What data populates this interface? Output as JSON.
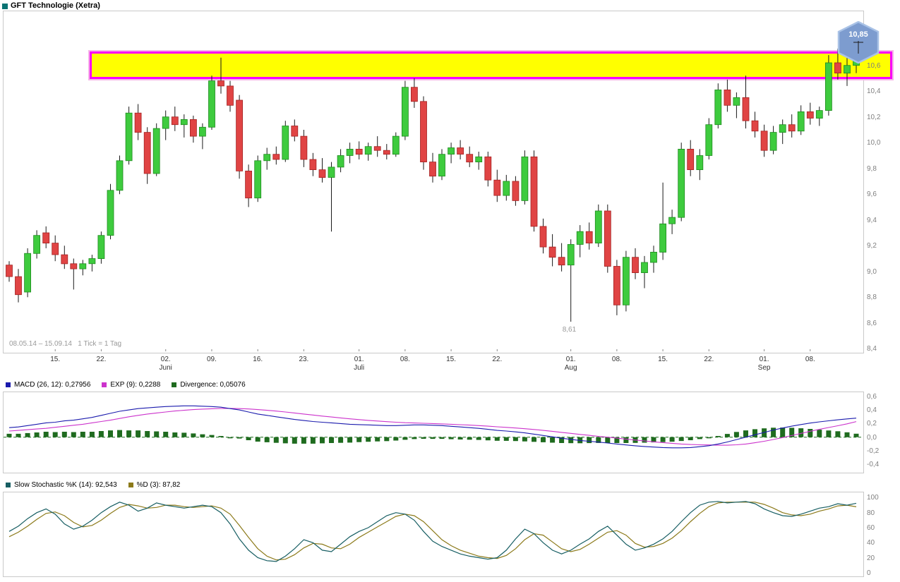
{
  "header": {
    "title": "GFT Technologie (Xetra)",
    "title_icon_color": "#0a7474"
  },
  "colors": {
    "up": "#3ecb3e",
    "up_border": "#1f8a1f",
    "down": "#e04444",
    "down_border": "#a32222",
    "wick": "#1a1a1a",
    "band_fill": "#ffff00",
    "band_border": "#fa00fa",
    "band_outer": "#f5b5e8",
    "hex_fill": "#7d9ccf",
    "hex_border": "#a9c2e6",
    "macd": "#1a1aad",
    "signal": "#cc33cc",
    "divergence": "#1f6b1f",
    "stoch_k": "#175e63",
    "stoch_d": "#8c7a1a",
    "axis_text": "#7f7f7f",
    "box_border": "#c9c9c9",
    "muted_text": "#999999"
  },
  "chart_data": [
    {
      "type": "candlestick",
      "title": "GFT Technologie (Xetra)",
      "period_label": "08.05.14 – 15.09.14   1 Tick = 1 Tag",
      "ylim": [
        8.38,
        11.02
      ],
      "y_ticks": [
        {
          "v": 10.6,
          "label": "10,6"
        },
        {
          "v": 10.4,
          "label": "10,4"
        },
        {
          "v": 10.2,
          "label": "10,2"
        },
        {
          "v": 10.0,
          "label": "10,0"
        },
        {
          "v": 9.8,
          "label": "9,8"
        },
        {
          "v": 9.6,
          "label": "9,6"
        },
        {
          "v": 9.4,
          "label": "9,4"
        },
        {
          "v": 9.2,
          "label": "9,2"
        },
        {
          "v": 9.0,
          "label": "9,0"
        },
        {
          "v": 8.8,
          "label": "8,8"
        },
        {
          "v": 8.6,
          "label": "8,6"
        },
        {
          "v": 8.4,
          "label": "8,4"
        }
      ],
      "x_ticks": [
        {
          "i": 5,
          "label": "15."
        },
        {
          "i": 10,
          "label": "22."
        },
        {
          "i": 17,
          "label": "02.",
          "month": "Juni"
        },
        {
          "i": 22,
          "label": "09."
        },
        {
          "i": 27,
          "label": "16."
        },
        {
          "i": 32,
          "label": "23."
        },
        {
          "i": 38,
          "label": "01.",
          "month": "Juli"
        },
        {
          "i": 43,
          "label": "08."
        },
        {
          "i": 48,
          "label": "15."
        },
        {
          "i": 53,
          "label": "22."
        },
        {
          "i": 61,
          "label": "01.",
          "month": "Aug"
        },
        {
          "i": 66,
          "label": "08."
        },
        {
          "i": 71,
          "label": "15."
        },
        {
          "i": 76,
          "label": "22."
        },
        {
          "i": 82,
          "label": "01.",
          "month": "Sep"
        },
        {
          "i": 87,
          "label": "08."
        }
      ],
      "low_annotation": {
        "i": 61,
        "value": 8.61,
        "label": "8,61"
      },
      "price_flag": {
        "value": 10.85,
        "label": "10,85"
      },
      "resistance_band": {
        "top": 10.69,
        "bottom": 10.51,
        "start_frac": 0.1
      },
      "candles": [
        [
          9.05,
          9.08,
          8.92,
          8.96
        ],
        [
          8.96,
          9.02,
          8.76,
          8.82
        ],
        [
          8.84,
          9.18,
          8.8,
          9.14
        ],
        [
          9.14,
          9.32,
          9.1,
          9.28
        ],
        [
          9.3,
          9.35,
          9.18,
          9.22
        ],
        [
          9.22,
          9.28,
          9.08,
          9.13
        ],
        [
          9.13,
          9.2,
          9.02,
          9.06
        ],
        [
          9.06,
          9.1,
          8.86,
          9.02
        ],
        [
          9.02,
          9.09,
          8.97,
          9.06
        ],
        [
          9.06,
          9.13,
          9.0,
          9.1
        ],
        [
          9.1,
          9.31,
          9.06,
          9.28
        ],
        [
          9.28,
          9.68,
          9.25,
          9.63
        ],
        [
          9.63,
          9.9,
          9.6,
          9.86
        ],
        [
          9.86,
          10.28,
          9.83,
          10.23
        ],
        [
          10.23,
          10.3,
          10.02,
          10.08
        ],
        [
          10.08,
          10.12,
          9.68,
          9.76
        ],
        [
          9.76,
          10.15,
          9.74,
          10.11
        ],
        [
          10.11,
          10.25,
          10.02,
          10.2
        ],
        [
          10.2,
          10.28,
          10.09,
          10.14
        ],
        [
          10.14,
          10.22,
          10.04,
          10.18
        ],
        [
          10.18,
          10.21,
          10.0,
          10.05
        ],
        [
          10.05,
          10.15,
          9.95,
          10.12
        ],
        [
          10.12,
          10.52,
          10.1,
          10.48
        ],
        [
          10.48,
          10.66,
          10.38,
          10.44
        ],
        [
          10.44,
          10.48,
          10.24,
          10.29
        ],
        [
          10.33,
          10.37,
          9.72,
          9.78
        ],
        [
          9.78,
          9.83,
          9.5,
          9.57
        ],
        [
          9.57,
          9.9,
          9.54,
          9.86
        ],
        [
          9.86,
          9.96,
          9.79,
          9.91
        ],
        [
          9.91,
          9.97,
          9.83,
          9.87
        ],
        [
          9.87,
          10.17,
          9.85,
          10.13
        ],
        [
          10.13,
          10.18,
          10.01,
          10.05
        ],
        [
          10.05,
          10.1,
          9.81,
          9.87
        ],
        [
          9.87,
          9.92,
          9.74,
          9.79
        ],
        [
          9.79,
          9.88,
          9.69,
          9.73
        ],
        [
          9.73,
          9.85,
          9.31,
          9.81
        ],
        [
          9.81,
          9.95,
          9.77,
          9.9
        ],
        [
          9.9,
          10.0,
          9.84,
          9.95
        ],
        [
          9.95,
          10.01,
          9.87,
          9.91
        ],
        [
          9.91,
          10.0,
          9.86,
          9.97
        ],
        [
          9.97,
          10.05,
          9.89,
          9.94
        ],
        [
          9.94,
          9.99,
          9.87,
          9.91
        ],
        [
          9.91,
          10.08,
          9.89,
          10.05
        ],
        [
          10.05,
          10.48,
          10.02,
          10.43
        ],
        [
          10.43,
          10.5,
          10.27,
          10.32
        ],
        [
          10.32,
          10.36,
          9.79,
          9.85
        ],
        [
          9.85,
          9.92,
          9.69,
          9.74
        ],
        [
          9.74,
          9.95,
          9.71,
          9.91
        ],
        [
          9.91,
          10.0,
          9.84,
          9.96
        ],
        [
          9.96,
          10.02,
          9.87,
          9.91
        ],
        [
          9.91,
          9.97,
          9.81,
          9.85
        ],
        [
          9.85,
          9.93,
          9.79,
          9.89
        ],
        [
          9.89,
          9.93,
          9.66,
          9.71
        ],
        [
          9.71,
          9.79,
          9.54,
          9.59
        ],
        [
          9.59,
          9.75,
          9.55,
          9.7
        ],
        [
          9.7,
          9.74,
          9.51,
          9.55
        ],
        [
          9.55,
          9.94,
          9.52,
          9.89
        ],
        [
          9.89,
          9.94,
          9.31,
          9.35
        ],
        [
          9.35,
          9.41,
          9.14,
          9.19
        ],
        [
          9.19,
          9.29,
          9.04,
          9.11
        ],
        [
          9.11,
          9.22,
          9.0,
          9.05
        ],
        [
          9.05,
          9.25,
          8.61,
          9.21
        ],
        [
          9.21,
          9.36,
          9.11,
          9.31
        ],
        [
          9.31,
          9.38,
          9.17,
          9.22
        ],
        [
          9.22,
          9.52,
          9.19,
          9.47
        ],
        [
          9.47,
          9.52,
          8.99,
          9.04
        ],
        [
          9.04,
          9.09,
          8.66,
          8.74
        ],
        [
          8.74,
          9.16,
          8.69,
          9.11
        ],
        [
          9.11,
          9.18,
          8.94,
          8.99
        ],
        [
          8.99,
          9.12,
          8.87,
          9.07
        ],
        [
          9.07,
          9.2,
          8.99,
          9.15
        ],
        [
          9.15,
          9.69,
          9.09,
          9.37
        ],
        [
          9.37,
          9.48,
          9.29,
          9.42
        ],
        [
          9.42,
          10.0,
          9.39,
          9.95
        ],
        [
          9.95,
          10.02,
          9.74,
          9.79
        ],
        [
          9.79,
          9.95,
          9.71,
          9.9
        ],
        [
          9.9,
          10.19,
          9.87,
          10.14
        ],
        [
          10.14,
          10.46,
          10.11,
          10.41
        ],
        [
          10.41,
          10.49,
          10.24,
          10.29
        ],
        [
          10.29,
          10.39,
          10.19,
          10.35
        ],
        [
          10.35,
          10.52,
          10.11,
          10.17
        ],
        [
          10.17,
          10.24,
          10.04,
          10.09
        ],
        [
          10.09,
          10.14,
          9.89,
          9.94
        ],
        [
          9.94,
          10.13,
          9.91,
          10.08
        ],
        [
          10.08,
          10.18,
          9.99,
          10.14
        ],
        [
          10.14,
          10.22,
          10.04,
          10.09
        ],
        [
          10.09,
          10.29,
          10.06,
          10.24
        ],
        [
          10.24,
          10.31,
          10.14,
          10.19
        ],
        [
          10.19,
          10.28,
          10.13,
          10.25
        ],
        [
          10.25,
          10.68,
          10.21,
          10.62
        ],
        [
          10.62,
          10.73,
          10.49,
          10.54
        ],
        [
          10.54,
          10.66,
          10.44,
          10.6
        ],
        [
          10.6,
          10.85,
          10.54,
          10.7
        ]
      ]
    },
    {
      "type": "macd",
      "title": "MACD",
      "ylim": [
        -0.5,
        0.66
      ],
      "y_ticks": [
        {
          "v": 0.6,
          "label": "0,6"
        },
        {
          "v": 0.4,
          "label": "0,4"
        },
        {
          "v": 0.2,
          "label": "0,2"
        },
        {
          "v": 0.0,
          "label": "0,0"
        },
        {
          "v": -0.2,
          "label": "-0,2"
        },
        {
          "v": -0.4,
          "label": "-0,4"
        }
      ],
      "legend": [
        {
          "label": "MACD (26, 12): 0,27956",
          "color": "#1a1aad"
        },
        {
          "label": "EXP (9): 0,2288",
          "color": "#cc33cc"
        },
        {
          "label": "Divergence: 0,05076",
          "color": "#1f6b1f"
        }
      ],
      "histogram": "MACD-EXP",
      "series": [
        {
          "name": "MACD",
          "values": [
            0.14,
            0.15,
            0.17,
            0.19,
            0.21,
            0.22,
            0.24,
            0.25,
            0.27,
            0.29,
            0.32,
            0.35,
            0.38,
            0.4,
            0.42,
            0.43,
            0.44,
            0.45,
            0.455,
            0.46,
            0.46,
            0.455,
            0.45,
            0.44,
            0.42,
            0.4,
            0.37,
            0.34,
            0.32,
            0.3,
            0.28,
            0.26,
            0.245,
            0.23,
            0.22,
            0.21,
            0.2,
            0.19,
            0.185,
            0.18,
            0.175,
            0.17,
            0.17,
            0.175,
            0.18,
            0.18,
            0.175,
            0.17,
            0.16,
            0.15,
            0.14,
            0.13,
            0.115,
            0.1,
            0.09,
            0.078,
            0.063,
            0.045,
            0.025,
            0.005,
            -0.015,
            -0.032,
            -0.048,
            -0.06,
            -0.072,
            -0.086,
            -0.1,
            -0.114,
            -0.126,
            -0.136,
            -0.145,
            -0.152,
            -0.156,
            -0.156,
            -0.152,
            -0.14,
            -0.125,
            -0.1,
            -0.07,
            -0.035,
            0.0,
            0.035,
            0.07,
            0.105,
            0.135,
            0.162,
            0.186,
            0.207,
            0.225,
            0.241,
            0.255,
            0.268,
            0.27956
          ]
        },
        {
          "name": "EXP",
          "values": [
            0.09,
            0.1,
            0.11,
            0.12,
            0.13,
            0.145,
            0.16,
            0.175,
            0.19,
            0.21,
            0.23,
            0.25,
            0.275,
            0.3,
            0.32,
            0.34,
            0.355,
            0.37,
            0.385,
            0.395,
            0.405,
            0.412,
            0.418,
            0.422,
            0.423,
            0.42,
            0.415,
            0.405,
            0.395,
            0.383,
            0.37,
            0.355,
            0.34,
            0.325,
            0.31,
            0.296,
            0.283,
            0.27,
            0.258,
            0.247,
            0.237,
            0.228,
            0.22,
            0.213,
            0.208,
            0.204,
            0.2,
            0.195,
            0.19,
            0.184,
            0.177,
            0.17,
            0.162,
            0.153,
            0.144,
            0.135,
            0.125,
            0.113,
            0.1,
            0.086,
            0.071,
            0.056,
            0.041,
            0.027,
            0.013,
            0.0,
            -0.014,
            -0.028,
            -0.042,
            -0.055,
            -0.068,
            -0.08,
            -0.09,
            -0.1,
            -0.107,
            -0.112,
            -0.114,
            -0.118,
            -0.118,
            -0.112,
            -0.1,
            -0.082,
            -0.06,
            -0.034,
            -0.006,
            0.024,
            0.055,
            0.086,
            0.115,
            0.142,
            0.168,
            0.196,
            0.2288
          ]
        }
      ]
    },
    {
      "type": "line",
      "title": "Slow Stochastic",
      "ylim": [
        -3,
        107
      ],
      "y_ticks": [
        {
          "v": 100,
          "label": "100"
        },
        {
          "v": 80,
          "label": "80"
        },
        {
          "v": 60,
          "label": "60"
        },
        {
          "v": 40,
          "label": "40"
        },
        {
          "v": 20,
          "label": "20"
        },
        {
          "v": 0,
          "label": "0"
        }
      ],
      "legend": [
        {
          "label": "Slow Stochastic %K (14): 92,543",
          "color": "#175e63"
        },
        {
          "label": "%D (3): 87,82",
          "color": "#8c7a1a"
        }
      ],
      "series": [
        {
          "name": "%K",
          "values": [
            55,
            62,
            72,
            80,
            85,
            78,
            65,
            58,
            62,
            70,
            80,
            88,
            94,
            90,
            82,
            86,
            93,
            90,
            88,
            86,
            88,
            90,
            88,
            80,
            65,
            45,
            30,
            20,
            16,
            15,
            22,
            32,
            44,
            40,
            30,
            28,
            38,
            48,
            55,
            60,
            68,
            76,
            80,
            78,
            70,
            55,
            42,
            35,
            30,
            25,
            22,
            20,
            18,
            20,
            30,
            45,
            58,
            52,
            40,
            30,
            25,
            30,
            38,
            45,
            55,
            62,
            50,
            38,
            30,
            33,
            38,
            45,
            55,
            68,
            80,
            90,
            94,
            95,
            93,
            94,
            95,
            92,
            85,
            80,
            76,
            75,
            78,
            82,
            86,
            88,
            92,
            90,
            92.543
          ]
        },
        {
          "name": "%D",
          "values": [
            48,
            54,
            62,
            71,
            79,
            81,
            76,
            67,
            61,
            63,
            70,
            79,
            87,
            91,
            89,
            86,
            87,
            90,
            90,
            88,
            87,
            88,
            89,
            86,
            78,
            63,
            47,
            32,
            22,
            17,
            18,
            24,
            33,
            39,
            38,
            33,
            32,
            38,
            47,
            54,
            61,
            68,
            75,
            78,
            76,
            68,
            56,
            44,
            36,
            30,
            26,
            22,
            20,
            19,
            23,
            32,
            44,
            52,
            50,
            41,
            32,
            28,
            31,
            38,
            46,
            54,
            56,
            50,
            39,
            34,
            35,
            39,
            46,
            56,
            68,
            79,
            88,
            93,
            94,
            94,
            94,
            94,
            91,
            86,
            80,
            77,
            76,
            78,
            82,
            85,
            89,
            90,
            87.82
          ]
        }
      ]
    }
  ]
}
